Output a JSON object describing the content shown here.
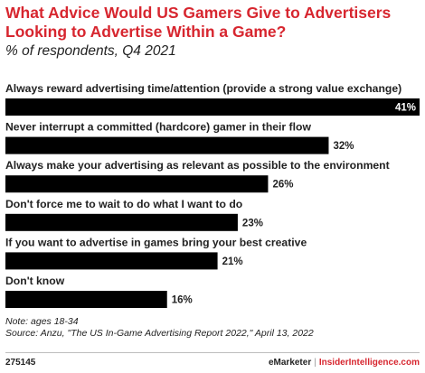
{
  "header": {
    "title": "What Advice Would US Gamers Give to Advertisers Looking to Advertise Within a Game?",
    "subtitle": "% of respondents, Q4 2021"
  },
  "chart_data": {
    "type": "bar",
    "orientation": "horizontal",
    "title": "What Advice Would US Gamers Give to Advertisers Looking to Advertise Within a Game?",
    "subtitle": "% of respondents, Q4 2021",
    "categories": [
      "Always reward advertising time/attention (provide a strong value exchange)",
      "Never interrupt a committed (hardcore) gamer in their flow",
      "Always make your advertising as relevant as possible to the environment",
      "Don't force me to wait to do what I want to do",
      "If you want to advertise in games bring your best creative",
      "Don't know"
    ],
    "values": [
      41,
      32,
      26,
      23,
      21,
      16
    ],
    "value_labels": [
      "41%",
      "32%",
      "26%",
      "23%",
      "21%",
      "16%"
    ],
    "unit": "%",
    "xlim": [
      0,
      41
    ],
    "grid": false,
    "legend": "none",
    "bar_color": "#000000",
    "label_inside_color": "#ffffff",
    "label_outside_color": "#222222"
  },
  "footer": {
    "note": "Note: ages 18-34",
    "source": "Source: Anzu, \"The US In-Game Advertising Report 2022,\" April 13, 2022",
    "chart_id": "275145",
    "brand_left": "eMarketer",
    "brand_sep": "|",
    "brand_right": "InsiderIntelligence.com"
  },
  "colors": {
    "title": "#d7262f",
    "text": "#222222",
    "brand_accent": "#d7262f"
  }
}
